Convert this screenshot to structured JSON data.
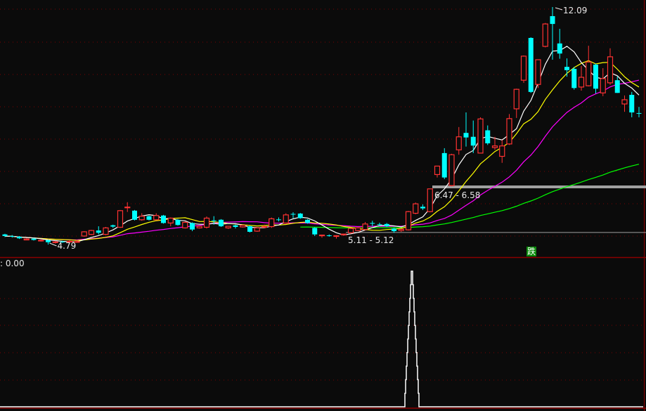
{
  "chart_data": {
    "type": "candlestick",
    "colors": {
      "up": "#ff3232",
      "down": "#00ffff",
      "ma5": "#ffffff",
      "ma10": "#ffff00",
      "ma20": "#ff00ff",
      "ma60": "#00ff00",
      "grid": "#7a0000",
      "level": "#a0a0a0"
    },
    "ma_periods": [
      5,
      10,
      20,
      60
    ],
    "candles": [
      {
        "o": 5.1,
        "h": 5.12,
        "l": 5.02,
        "c": 5.05
      },
      {
        "o": 5.05,
        "h": 5.08,
        "l": 5.0,
        "c": 5.03
      },
      {
        "o": 5.03,
        "h": 5.05,
        "l": 4.96,
        "c": 4.98
      },
      {
        "o": 4.93,
        "h": 4.98,
        "l": 4.92,
        "c": 4.96
      },
      {
        "o": 4.97,
        "h": 4.99,
        "l": 4.91,
        "c": 4.93
      },
      {
        "o": 4.9,
        "h": 4.94,
        "l": 4.88,
        "c": 4.92
      },
      {
        "o": 4.92,
        "h": 4.94,
        "l": 4.79,
        "c": 4.86
      },
      {
        "o": 4.85,
        "h": 4.9,
        "l": 4.82,
        "c": 4.87
      },
      {
        "o": 4.88,
        "h": 4.9,
        "l": 4.84,
        "c": 4.86
      },
      {
        "o": 4.88,
        "h": 4.92,
        "l": 4.85,
        "c": 4.89
      },
      {
        "o": 4.88,
        "h": 4.93,
        "l": 4.85,
        "c": 4.88
      },
      {
        "o": 5.05,
        "h": 5.2,
        "l": 5.03,
        "c": 5.18
      },
      {
        "o": 5.1,
        "h": 5.24,
        "l": 5.08,
        "c": 5.22
      },
      {
        "o": 5.22,
        "h": 5.35,
        "l": 5.1,
        "c": 5.15
      },
      {
        "o": 5.1,
        "h": 5.33,
        "l": 5.08,
        "c": 5.3
      },
      {
        "o": 5.38,
        "h": 5.4,
        "l": 5.3,
        "c": 5.34
      },
      {
        "o": 5.32,
        "h": 5.85,
        "l": 5.3,
        "c": 5.83
      },
      {
        "o": 5.92,
        "h": 6.09,
        "l": 5.79,
        "c": 5.94
      },
      {
        "o": 5.83,
        "h": 5.85,
        "l": 5.53,
        "c": 5.55
      },
      {
        "o": 5.55,
        "h": 5.75,
        "l": 5.52,
        "c": 5.66
      },
      {
        "o": 5.66,
        "h": 5.68,
        "l": 5.53,
        "c": 5.55
      },
      {
        "o": 5.55,
        "h": 5.75,
        "l": 5.53,
        "c": 5.68
      },
      {
        "o": 5.68,
        "h": 5.7,
        "l": 5.43,
        "c": 5.45
      },
      {
        "o": 5.45,
        "h": 5.62,
        "l": 5.35,
        "c": 5.6
      },
      {
        "o": 5.55,
        "h": 5.57,
        "l": 5.37,
        "c": 5.39
      },
      {
        "o": 5.3,
        "h": 5.5,
        "l": 5.28,
        "c": 5.47
      },
      {
        "o": 5.45,
        "h": 5.47,
        "l": 5.2,
        "c": 5.25
      },
      {
        "o": 5.3,
        "h": 5.37,
        "l": 5.28,
        "c": 5.35
      },
      {
        "o": 5.32,
        "h": 5.65,
        "l": 5.28,
        "c": 5.6
      },
      {
        "o": 5.53,
        "h": 5.66,
        "l": 5.4,
        "c": 5.52
      },
      {
        "o": 5.55,
        "h": 5.57,
        "l": 5.33,
        "c": 5.35
      },
      {
        "o": 5.3,
        "h": 5.36,
        "l": 5.27,
        "c": 5.35
      },
      {
        "o": 5.38,
        "h": 5.4,
        "l": 5.28,
        "c": 5.33
      },
      {
        "o": 5.33,
        "h": 5.4,
        "l": 5.31,
        "c": 5.38
      },
      {
        "o": 5.35,
        "h": 5.37,
        "l": 5.16,
        "c": 5.18
      },
      {
        "o": 5.2,
        "h": 5.32,
        "l": 5.18,
        "c": 5.3
      },
      {
        "o": 5.33,
        "h": 5.4,
        "l": 5.3,
        "c": 5.34
      },
      {
        "o": 5.34,
        "h": 5.62,
        "l": 5.3,
        "c": 5.58
      },
      {
        "o": 5.56,
        "h": 5.62,
        "l": 5.5,
        "c": 5.55
      },
      {
        "o": 5.45,
        "h": 5.75,
        "l": 5.43,
        "c": 5.7
      },
      {
        "o": 5.73,
        "h": 5.78,
        "l": 5.6,
        "c": 5.72
      },
      {
        "o": 5.74,
        "h": 5.76,
        "l": 5.58,
        "c": 5.6
      },
      {
        "o": 5.55,
        "h": 5.57,
        "l": 5.43,
        "c": 5.45
      },
      {
        "o": 5.3,
        "h": 5.32,
        "l": 5.05,
        "c": 5.1
      },
      {
        "o": 5.07,
        "h": 5.09,
        "l": 5.0,
        "c": 5.08
      },
      {
        "o": 5.07,
        "h": 5.1,
        "l": 5.03,
        "c": 5.06
      },
      {
        "o": 5.05,
        "h": 5.08,
        "l": 4.97,
        "c": 5.06
      },
      {
        "o": 5.09,
        "h": 5.12,
        "l": 5.06,
        "c": 5.11
      },
      {
        "o": 5.15,
        "h": 5.3,
        "l": 5.12,
        "c": 5.28
      },
      {
        "o": 5.22,
        "h": 5.32,
        "l": 5.2,
        "c": 5.3
      },
      {
        "o": 5.25,
        "h": 5.48,
        "l": 5.22,
        "c": 5.42
      },
      {
        "o": 5.45,
        "h": 5.52,
        "l": 5.35,
        "c": 5.44
      },
      {
        "o": 5.41,
        "h": 5.46,
        "l": 5.36,
        "c": 5.4
      },
      {
        "o": 5.42,
        "h": 5.45,
        "l": 5.33,
        "c": 5.35
      },
      {
        "o": 5.28,
        "h": 5.3,
        "l": 5.15,
        "c": 5.2
      },
      {
        "o": 5.22,
        "h": 5.28,
        "l": 5.18,
        "c": 5.26
      },
      {
        "o": 5.24,
        "h": 5.82,
        "l": 5.22,
        "c": 5.8
      },
      {
        "o": 5.75,
        "h": 6.08,
        "l": 5.72,
        "c": 6.04
      },
      {
        "o": 5.95,
        "h": 6.02,
        "l": 5.85,
        "c": 5.9
      },
      {
        "o": 5.8,
        "h": 6.5,
        "l": 5.78,
        "c": 6.5
      },
      {
        "o": 6.94,
        "h": 7.2,
        "l": 6.85,
        "c": 7.2
      },
      {
        "o": 7.6,
        "h": 7.75,
        "l": 6.8,
        "c": 6.85
      },
      {
        "o": 6.6,
        "h": 7.58,
        "l": 6.58,
        "c": 7.55
      },
      {
        "o": 7.7,
        "h": 8.4,
        "l": 7.55,
        "c": 8.1
      },
      {
        "o": 8.22,
        "h": 8.85,
        "l": 7.8,
        "c": 8.08
      },
      {
        "o": 8.1,
        "h": 8.6,
        "l": 7.6,
        "c": 7.83
      },
      {
        "o": 7.6,
        "h": 8.7,
        "l": 7.6,
        "c": 8.65
      },
      {
        "o": 8.3,
        "h": 8.45,
        "l": 7.85,
        "c": 7.9
      },
      {
        "o": 7.77,
        "h": 8.1,
        "l": 7.7,
        "c": 7.82
      },
      {
        "o": 7.5,
        "h": 8.0,
        "l": 7.3,
        "c": 7.82
      },
      {
        "o": 7.88,
        "h": 8.8,
        "l": 7.85,
        "c": 8.66
      },
      {
        "o": 8.96,
        "h": 9.58,
        "l": 8.68,
        "c": 9.56
      },
      {
        "o": 9.84,
        "h": 10.6,
        "l": 9.76,
        "c": 10.58
      },
      {
        "o": 11.14,
        "h": 11.16,
        "l": 9.45,
        "c": 9.48
      },
      {
        "o": 9.71,
        "h": 10.47,
        "l": 9.6,
        "c": 10.47
      },
      {
        "o": 10.88,
        "h": 11.6,
        "l": 10.85,
        "c": 11.57
      },
      {
        "o": 11.81,
        "h": 12.09,
        "l": 10.47,
        "c": 11.57
      },
      {
        "o": 10.97,
        "h": 11.42,
        "l": 10.5,
        "c": 10.66
      },
      {
        "o": 10.25,
        "h": 10.51,
        "l": 9.95,
        "c": 10.15
      },
      {
        "o": 10.19,
        "h": 10.25,
        "l": 9.55,
        "c": 9.6
      },
      {
        "o": 9.63,
        "h": 10.28,
        "l": 9.52,
        "c": 9.93
      },
      {
        "o": 9.67,
        "h": 10.9,
        "l": 9.65,
        "c": 10.4
      },
      {
        "o": 10.32,
        "h": 10.35,
        "l": 9.43,
        "c": 9.58
      },
      {
        "o": 9.45,
        "h": 10.21,
        "l": 9.35,
        "c": 9.89
      },
      {
        "o": 9.76,
        "h": 10.82,
        "l": 9.7,
        "c": 10.56
      },
      {
        "o": 9.84,
        "h": 9.95,
        "l": 9.45,
        "c": 9.45
      },
      {
        "o": 9.11,
        "h": 9.37,
        "l": 8.87,
        "c": 9.24
      },
      {
        "o": 9.39,
        "h": 9.48,
        "l": 8.7,
        "c": 8.85
      },
      {
        "o": 8.83,
        "h": 9.02,
        "l": 8.7,
        "c": 8.82
      }
    ],
    "annotations": {
      "high_label": "12.09",
      "low_label": "4.79",
      "zone_upper_label": "6.47 - 6.58",
      "zone_upper_price": 6.56,
      "zone_lower_label": "5.11 - 5.12",
      "zone_lower_price": 5.16
    },
    "signal_badge": "跌",
    "indicator": {
      "label": ": 0.00",
      "spike_index": 56
    }
  }
}
